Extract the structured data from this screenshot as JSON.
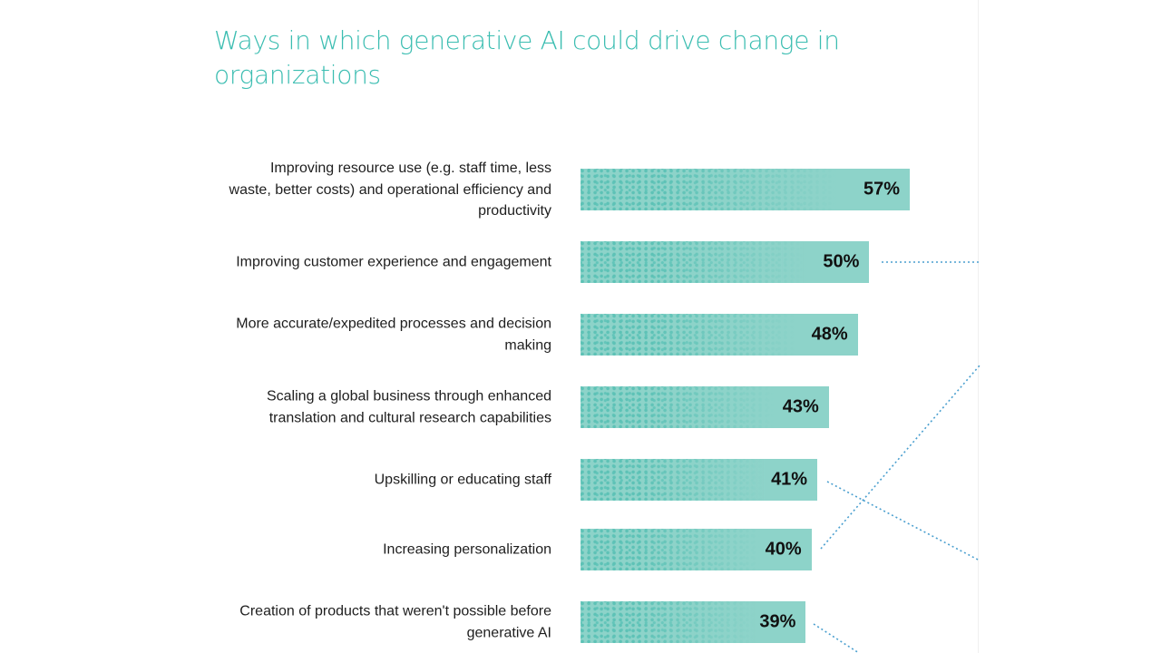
{
  "chart_data": {
    "type": "bar",
    "orientation": "horizontal",
    "title": "Ways in which generative AI could drive change in organizations",
    "categories": [
      "Improving resource use (e.g. staff time, less waste, better costs) and operational efficiency and productivity",
      "Improving customer experience and engagement",
      "More accurate/expedited processes and decision making",
      "Scaling a global business through enhanced translation and cultural research capabilities",
      "Upskilling or educating staff",
      "Increasing personalization",
      "Creation of products that weren't possible before generative AI"
    ],
    "values": [
      57,
      50,
      48,
      43,
      41,
      40,
      39
    ],
    "value_labels": [
      "57%",
      "50%",
      "48%",
      "43%",
      "41%",
      "40%",
      "39%"
    ],
    "unit": "%",
    "grid": false,
    "colors": {
      "title": "#3bbdb1",
      "bar": "#8dd3c9",
      "bar_texture": "#5dc2b6",
      "connector": "#4a9fcf"
    }
  }
}
